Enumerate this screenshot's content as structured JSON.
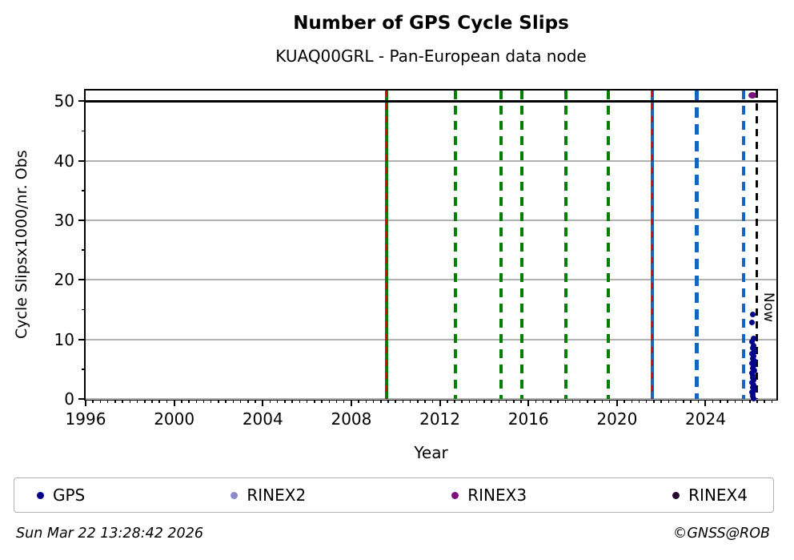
{
  "header": {
    "title": "Number of GPS Cycle Slips",
    "subtitle": "KUAQ00GRL - Pan-European data node"
  },
  "chart_data": {
    "type": "scatter",
    "title": "Number of GPS Cycle Slips",
    "subtitle": "KUAQ00GRL - Pan-European data node",
    "xlabel": "Year",
    "ylabel": "Cycle Slipsx1000/nr. Obs",
    "xlim": [
      1996,
      2027.2
    ],
    "ylim": [
      0,
      51.8
    ],
    "x_major_ticks": [
      1996,
      2000,
      2004,
      2008,
      2012,
      2016,
      2020,
      2024
    ],
    "x_minor_step_years": 0.3333333,
    "y_major_ticks": [
      0,
      10,
      20,
      30,
      40,
      50
    ],
    "y_minor_ticks": [
      5,
      15,
      25,
      35,
      45
    ],
    "grid_y_values": [
      0,
      10,
      20,
      30,
      40
    ],
    "grid_color": "#b2b2b2",
    "hlines": [
      {
        "y": 50,
        "color": "#000000",
        "width": 3
      }
    ],
    "vlines": [
      {
        "x": 2009.6,
        "color": "#008000",
        "width": 4,
        "dash": null,
        "overlay": {
          "color": "#dd0000",
          "width": 2,
          "dash": [
            8,
            8
          ]
        }
      },
      {
        "x": 2012.7,
        "color": "#008000",
        "width": 4,
        "dash": [
          11,
          8
        ]
      },
      {
        "x": 2014.75,
        "color": "#008000",
        "width": 4,
        "dash": [
          11,
          8
        ]
      },
      {
        "x": 2015.7,
        "color": "#008000",
        "width": 4,
        "dash": [
          11,
          8
        ]
      },
      {
        "x": 2017.7,
        "color": "#008000",
        "width": 4,
        "dash": [
          11,
          8
        ]
      },
      {
        "x": 2019.6,
        "color": "#008000",
        "width": 4,
        "dash": [
          11,
          8
        ]
      },
      {
        "x": 2021.6,
        "color": "#1565c0",
        "width": 4,
        "dash": null,
        "overlay": {
          "color": "#dd0000",
          "width": 2,
          "dash": [
            8,
            8
          ]
        }
      },
      {
        "x": 2023.6,
        "color": "#1565c0",
        "width": 5,
        "dash": [
          13,
          8
        ]
      },
      {
        "x": 2025.7,
        "color": "#1565c0",
        "width": 4,
        "dash": [
          11,
          8
        ]
      },
      {
        "x": 2026.3,
        "color": "#000000",
        "width": 3,
        "dash": [
          9,
          7
        ],
        "label": "Now"
      }
    ],
    "series": [
      {
        "name": "GPS",
        "color": "#00008b",
        "marker_px": 7,
        "points": [
          [
            2026.15,
            14.2
          ],
          [
            2026.08,
            12.8
          ],
          [
            2026.18,
            10.2
          ],
          [
            2026.1,
            9.6
          ],
          [
            2026.16,
            9.0
          ],
          [
            2026.12,
            8.5
          ],
          [
            2026.2,
            8.0
          ],
          [
            2026.1,
            7.6
          ],
          [
            2026.16,
            7.2
          ],
          [
            2026.13,
            6.8
          ],
          [
            2026.19,
            6.4
          ],
          [
            2026.1,
            6.0
          ],
          [
            2026.16,
            5.6
          ],
          [
            2026.12,
            5.2
          ],
          [
            2026.2,
            4.8
          ],
          [
            2026.1,
            4.4
          ],
          [
            2026.15,
            4.0
          ],
          [
            2026.12,
            3.6
          ],
          [
            2026.18,
            3.2
          ],
          [
            2026.1,
            2.8
          ],
          [
            2026.16,
            2.4
          ],
          [
            2026.13,
            2.0
          ],
          [
            2026.19,
            1.6
          ],
          [
            2026.11,
            1.2
          ],
          [
            2026.15,
            0.9
          ],
          [
            2026.13,
            0.5
          ],
          [
            2026.17,
            0.1
          ]
        ]
      },
      {
        "name": "RINEX2",
        "color": "#8a8acd",
        "marker_px": 7,
        "points": []
      },
      {
        "name": "RINEX3",
        "color": "#7c117c",
        "marker_px": 10,
        "points": [
          [
            2026.1,
            50.9
          ]
        ]
      },
      {
        "name": "RINEX4",
        "color": "#26062b",
        "marker_px": 7,
        "points": []
      }
    ],
    "legend_position": "bottom",
    "now_label": "Now"
  },
  "legend": {
    "items": [
      {
        "label": "GPS",
        "color": "#00008b"
      },
      {
        "label": "RINEX2",
        "color": "#8a8acd"
      },
      {
        "label": "RINEX3",
        "color": "#7c117c"
      },
      {
        "label": "RINEX4",
        "color": "#26062b"
      }
    ]
  },
  "footer": {
    "timestamp": "Sun Mar 22 13:28:42 2026",
    "credit": "©GNSS@ROB"
  }
}
